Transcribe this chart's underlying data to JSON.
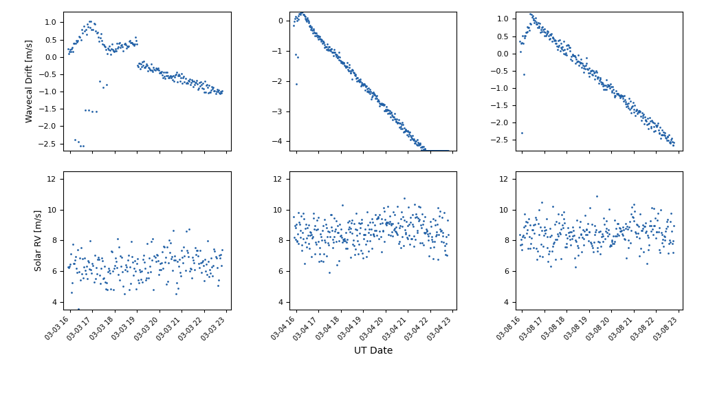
{
  "dot_color": "#1f5fa6",
  "dot_size": 4,
  "background_color": "#ffffff",
  "ylabel_top": "Wavecal Drift [m/s]",
  "ylabel_bottom": "Solar RV [m/s]",
  "xlabel": "UT Date",
  "col1_date": "2022-03-03",
  "col2_date": "2022-03-04",
  "col3_date": "2022-03-08",
  "col1_label": "03-03",
  "col2_label": "03-04",
  "col3_label": "03-08",
  "tick_hours": [
    16,
    17,
    18,
    19,
    20,
    21,
    22,
    23
  ],
  "wavecal_ylim1": [
    -2.7,
    1.3
  ],
  "wavecal_ylim2": [
    -4.3,
    0.3
  ],
  "wavecal_ylim3": [
    -2.8,
    1.2
  ],
  "solar_ylim": [
    3.5,
    12.5
  ]
}
